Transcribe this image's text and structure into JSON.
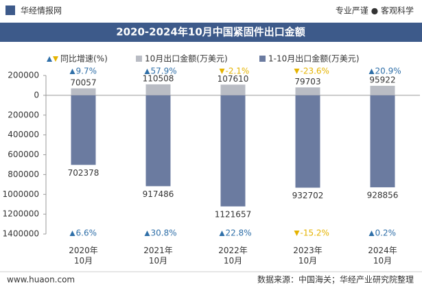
{
  "header": {
    "brand": "华经情报网",
    "slogan": "专业严谨 ● 客观科学"
  },
  "chart_data": {
    "type": "bar",
    "title": "2020-2024年10月中国紧固件出口金额",
    "categories": [
      "2020年10月",
      "2021年10月",
      "2022年10月",
      "2023年10月",
      "2024年10月"
    ],
    "ylim": [
      -1400000,
      200000
    ],
    "yticks": [
      {
        "value": 200000,
        "label": "200000"
      },
      {
        "value": 0,
        "label": "0"
      },
      {
        "value": -200000,
        "label": "200000"
      },
      {
        "value": -400000,
        "label": "400000"
      },
      {
        "value": -600000,
        "label": "600000"
      },
      {
        "value": -800000,
        "label": "800000"
      },
      {
        "value": -1000000,
        "label": "1000000"
      },
      {
        "value": -1200000,
        "label": "1200000"
      },
      {
        "value": -1400000,
        "label": "1400000"
      }
    ],
    "y2lim": [
      -200000,
      1400000
    ],
    "y2_reversed": true,
    "series": [
      {
        "name": "10月出口金额(万美元)",
        "color": "#b9bcc4",
        "values": [
          70057,
          110508,
          107610,
          79703,
          95922
        ]
      },
      {
        "name": "1-10月出口金额(万美元)",
        "color": "#6b7ba0",
        "axis": "y2",
        "values": [
          702378,
          917486,
          1121657,
          932702,
          928856
        ]
      }
    ],
    "growth": {
      "name": "同比增速(%)",
      "up_color": "#2f6fa8",
      "down_color": "#e5b300",
      "monthly": {
        "values": [
          9.7,
          57.9,
          -2.1,
          -23.6,
          20.9
        ],
        "value_labels": [
          "9.7%",
          "57.9%",
          "-2.1%",
          "-23.6%",
          "20.9%"
        ]
      },
      "cumulative": {
        "values": [
          6.6,
          30.8,
          22.8,
          -15.2,
          0.2
        ],
        "value_labels": [
          "6.6%",
          "30.8%",
          "22.8%",
          "-15.2%",
          "0.2%"
        ]
      }
    }
  },
  "footer": {
    "website": "www.huaon.com",
    "source": "数据来源：中国海关；华经产业研究院整理"
  }
}
